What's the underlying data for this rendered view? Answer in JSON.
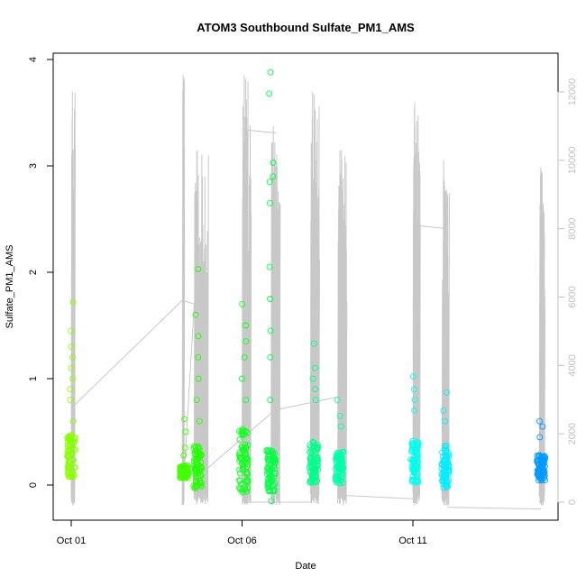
{
  "chart_data": {
    "type": "scatter",
    "title": "ATOM3 Southbound Sulfate_PM1_AMS",
    "xlabel": "Date",
    "ylabel": "Sulfate_PM1_AMS",
    "x_ticks": [
      "Oct 01",
      "Oct 06",
      "Oct 11"
    ],
    "y_ticks": [
      "0",
      "1",
      "2",
      "3",
      "4"
    ],
    "y2_ticks": [
      "0",
      "2000",
      "4000",
      "6000",
      "8000",
      "10000",
      "12000"
    ],
    "xlim": [
      "2017-09-30T16:00",
      "2017-10-15T10:00"
    ],
    "ylim": [
      -0.33,
      4.06
    ],
    "y2lim": [
      -560,
      12650
    ],
    "point_color_range": [
      "#88ff00",
      "#0099ff"
    ],
    "secondary_line_color": "#c8c8c8",
    "secondary_axis_color": "#c0c0c0",
    "flights": [
      {
        "date": "2017-10-01",
        "day": 1.0,
        "color": "#88ff00",
        "median": 0.25,
        "spread": 0.2,
        "max": 1.72,
        "outliers": [
          0.6,
          0.8,
          0.9,
          1.0,
          1.1,
          1.2,
          1.3,
          1.45,
          1.72
        ]
      },
      {
        "date": "2017-10-04",
        "day": 4.3,
        "color": "#44ff00",
        "median": 0.12,
        "spread": 0.06,
        "max": 0.62,
        "outliers": [
          0.28,
          0.35,
          0.5,
          0.62
        ]
      },
      {
        "date": "2017-10-04",
        "day": 4.7,
        "color": "#22ff00",
        "median": 0.15,
        "spread": 0.2,
        "max": 2.03,
        "outliers": [
          0.6,
          0.8,
          1.0,
          1.2,
          1.4,
          1.6,
          2.03
        ]
      },
      {
        "date": "2017-10-06",
        "day": 6.05,
        "color": "#11ff22",
        "median": 0.2,
        "spread": 0.3,
        "max": 1.7,
        "outliers": [
          0.8,
          1.0,
          1.2,
          1.35,
          1.5,
          1.7
        ]
      },
      {
        "date": "2017-10-06",
        "day": 6.85,
        "color": "#00ff44",
        "median": 0.12,
        "spread": 0.2,
        "max": 3.88,
        "outliers": [
          -0.15,
          0.8,
          1.2,
          1.45,
          1.75,
          2.05,
          2.65,
          2.85,
          2.9,
          3.03,
          3.68,
          3.88
        ]
      },
      {
        "date": "2017-10-08",
        "day": 8.1,
        "color": "#00ff88",
        "median": 0.2,
        "spread": 0.2,
        "max": 1.33,
        "outliers": [
          0.8,
          0.9,
          1.0,
          1.1,
          1.33
        ]
      },
      {
        "date": "2017-10-08",
        "day": 8.85,
        "color": "#00ffaa",
        "median": 0.15,
        "spread": 0.15,
        "max": 0.8,
        "outliers": [
          0.55,
          0.65,
          0.8
        ]
      },
      {
        "date": "2017-10-11",
        "day": 11.05,
        "color": "#00ffee",
        "median": 0.2,
        "spread": 0.2,
        "max": 1.02,
        "outliers": [
          0.7,
          0.8,
          0.9,
          1.02
        ]
      },
      {
        "date": "2017-10-11",
        "day": 11.95,
        "color": "#00eeff",
        "median": 0.15,
        "spread": 0.2,
        "max": 0.87,
        "outliers": [
          0.6,
          0.7,
          0.87
        ]
      },
      {
        "date": "2017-10-14",
        "day": 14.75,
        "color": "#0099ff",
        "median": 0.15,
        "spread": 0.12,
        "max": 0.6,
        "outliers": [
          0.45,
          0.55,
          0.6
        ]
      }
    ],
    "secondary_series": {
      "name": "",
      "segments": [
        {
          "start_day": 1.0,
          "end_day": 1.1,
          "peak": 12000
        },
        {
          "start_day": 4.25,
          "end_day": 4.3,
          "peak": 12500
        },
        {
          "start_day": 4.6,
          "end_day": 5.0,
          "peak": 10300
        },
        {
          "start_day": 6.0,
          "end_day": 6.25,
          "peak": 12500
        },
        {
          "start_day": 6.85,
          "end_day": 7.1,
          "peak": 11000
        },
        {
          "start_day": 8.0,
          "end_day": 8.25,
          "peak": 12000
        },
        {
          "start_day": 8.8,
          "end_day": 9.05,
          "peak": 10300
        },
        {
          "start_day": 11.0,
          "end_day": 11.2,
          "peak": 11700
        },
        {
          "start_day": 11.85,
          "end_day": 12.05,
          "peak": 10000
        },
        {
          "start_day": 14.7,
          "end_day": 14.85,
          "peak": 9800
        }
      ],
      "connectors": [
        [
          1.05,
          2800,
          4.25,
          5900
        ],
        [
          4.25,
          5900,
          4.6,
          5800
        ],
        [
          4.6,
          5800,
          4.3,
          700
        ],
        [
          4.65,
          700,
          6.85,
          2600
        ],
        [
          6.0,
          10900,
          7.0,
          10800
        ],
        [
          6.05,
          0,
          8.0,
          0
        ],
        [
          7.0,
          2700,
          8.9,
          3100
        ],
        [
          8.9,
          200,
          11.0,
          100
        ],
        [
          11.05,
          8100,
          12.0,
          8000
        ],
        [
          12.0,
          -150,
          14.75,
          -200
        ]
      ]
    }
  }
}
